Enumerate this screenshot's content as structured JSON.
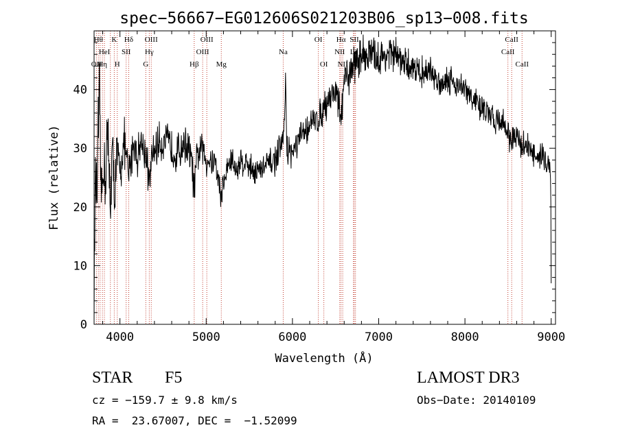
{
  "chart_data": {
    "type": "line",
    "title": "spec−56667−EG012606S021203B06_sp13−008.fits",
    "xlabel": "Wavelength (Å)",
    "ylabel": "Flux (relative)",
    "xlim": [
      3700,
      9050
    ],
    "ylim": [
      0,
      50
    ],
    "xticks": [
      4000,
      5000,
      6000,
      7000,
      8000,
      9000
    ],
    "xtick_labels": [
      "4000",
      "5000",
      "6000",
      "7000",
      "8000",
      "9000"
    ],
    "yticks": [
      0,
      10,
      20,
      30,
      40
    ],
    "ytick_labels": [
      "0",
      "10",
      "20",
      "30",
      "40"
    ],
    "grid": false,
    "series": [
      {
        "name": "flux",
        "color": "#000000",
        "anchors": [
          [
            3700,
            0
          ],
          [
            3705,
            14
          ],
          [
            3720,
            25
          ],
          [
            3735,
            22
          ],
          [
            3750,
            33
          ],
          [
            3760,
            40
          ],
          [
            3775,
            26
          ],
          [
            3790,
            21
          ],
          [
            3810,
            30
          ],
          [
            3830,
            23
          ],
          [
            3850,
            33
          ],
          [
            3870,
            27
          ],
          [
            3890,
            21
          ],
          [
            3910,
            30
          ],
          [
            3935,
            22
          ],
          [
            3965,
            29
          ],
          [
            4000,
            26
          ],
          [
            4050,
            31
          ],
          [
            4101,
            25
          ],
          [
            4150,
            31
          ],
          [
            4200,
            29
          ],
          [
            4250,
            31
          ],
          [
            4300,
            29
          ],
          [
            4340,
            24
          ],
          [
            4380,
            29
          ],
          [
            4450,
            31
          ],
          [
            4550,
            31
          ],
          [
            4650,
            29
          ],
          [
            4750,
            31
          ],
          [
            4820,
            29
          ],
          [
            4861,
            23
          ],
          [
            4900,
            29
          ],
          [
            4950,
            30
          ],
          [
            5000,
            28
          ],
          [
            5100,
            28
          ],
          [
            5172,
            22
          ],
          [
            5250,
            27
          ],
          [
            5300,
            28
          ],
          [
            5350,
            26
          ],
          [
            5400,
            28
          ],
          [
            5500,
            27
          ],
          [
            5600,
            26
          ],
          [
            5700,
            27
          ],
          [
            5800,
            28
          ],
          [
            5890,
            31
          ],
          [
            5910,
            36
          ],
          [
            5920,
            41
          ],
          [
            5935,
            30
          ],
          [
            6000,
            29
          ],
          [
            6100,
            32
          ],
          [
            6200,
            34
          ],
          [
            6300,
            35
          ],
          [
            6400,
            38
          ],
          [
            6500,
            40
          ],
          [
            6563,
            35
          ],
          [
            6600,
            41
          ],
          [
            6700,
            44
          ],
          [
            6800,
            46
          ],
          [
            6900,
            46
          ],
          [
            7000,
            45
          ],
          [
            7100,
            46
          ],
          [
            7200,
            46
          ],
          [
            7300,
            44
          ],
          [
            7400,
            44
          ],
          [
            7500,
            43
          ],
          [
            7600,
            43
          ],
          [
            7700,
            41
          ],
          [
            7800,
            42
          ],
          [
            7900,
            41
          ],
          [
            8000,
            40
          ],
          [
            8100,
            38
          ],
          [
            8200,
            37
          ],
          [
            8300,
            35
          ],
          [
            8400,
            35
          ],
          [
            8500,
            33
          ],
          [
            8542,
            31
          ],
          [
            8600,
            32
          ],
          [
            8662,
            30
          ],
          [
            8700,
            31
          ],
          [
            8800,
            29
          ],
          [
            8850,
            27
          ],
          [
            8900,
            30
          ],
          [
            8950,
            27
          ],
          [
            8980,
            28
          ],
          [
            8995,
            24
          ],
          [
            9000,
            7
          ]
        ],
        "noise_amplitude": [
          [
            3700,
            9
          ],
          [
            3900,
            8
          ],
          [
            4000,
            5
          ],
          [
            4400,
            4
          ],
          [
            4800,
            4
          ],
          [
            5200,
            3
          ],
          [
            5800,
            3
          ],
          [
            6200,
            3
          ],
          [
            6600,
            4
          ],
          [
            7000,
            4
          ],
          [
            7500,
            3
          ],
          [
            8000,
            3
          ],
          [
            8500,
            3
          ],
          [
            9000,
            3
          ]
        ]
      }
    ],
    "line_markers": [
      {
        "wavelength": 3727,
        "label": "OII",
        "row": 3
      },
      {
        "wavelength": 3750,
        "label": "Hθ",
        "row": 1
      },
      {
        "wavelength": 3770,
        "label": "",
        "row": 0
      },
      {
        "wavelength": 3797,
        "label": "Hη",
        "row": 3
      },
      {
        "wavelength": 3820,
        "label": "HeI",
        "row": 2
      },
      {
        "wavelength": 3889,
        "label": "",
        "row": 0
      },
      {
        "wavelength": 3934,
        "label": "K",
        "row": 1
      },
      {
        "wavelength": 3969,
        "label": "H",
        "row": 3
      },
      {
        "wavelength": 4072,
        "label": "SII",
        "row": 2
      },
      {
        "wavelength": 4102,
        "label": "Hδ",
        "row": 1
      },
      {
        "wavelength": 4300,
        "label": "G",
        "row": 3
      },
      {
        "wavelength": 4340,
        "label": "Hγ",
        "row": 2
      },
      {
        "wavelength": 4363,
        "label": "OIII",
        "row": 1
      },
      {
        "wavelength": 4861,
        "label": "Hβ",
        "row": 3
      },
      {
        "wavelength": 4959,
        "label": "OIII",
        "row": 2
      },
      {
        "wavelength": 5007,
        "label": "OIII",
        "row": 1
      },
      {
        "wavelength": 5175,
        "label": "Mg",
        "row": 3
      },
      {
        "wavelength": 5893,
        "label": "Na",
        "row": 2
      },
      {
        "wavelength": 6300,
        "label": "OI",
        "row": 1
      },
      {
        "wavelength": 6364,
        "label": "OI",
        "row": 3
      },
      {
        "wavelength": 6548,
        "label": "NII",
        "row": 2
      },
      {
        "wavelength": 6563,
        "label": "Hα",
        "row": 1
      },
      {
        "wavelength": 6583,
        "label": "NII",
        "row": 3
      },
      {
        "wavelength": 6707,
        "label": "Li",
        "row": 2
      },
      {
        "wavelength": 6717,
        "label": "SII",
        "row": 1
      },
      {
        "wavelength": 6731,
        "label": "SII",
        "row": 3
      },
      {
        "wavelength": 8498,
        "label": "CaII",
        "row": 2
      },
      {
        "wavelength": 8542,
        "label": "CaII",
        "row": 1
      },
      {
        "wavelength": 8662,
        "label": "CaII",
        "row": 3
      }
    ],
    "marker_color": "#c0392b"
  },
  "footer": {
    "object_class": "STAR",
    "subclass": "F5",
    "survey": "LAMOST DR3",
    "cz_line": "cz = −159.7 ± 9.8 km/s",
    "obs_date": "Obs−Date: 20140109",
    "radec": "RA =  23.67007, DEC =  −1.52099"
  }
}
